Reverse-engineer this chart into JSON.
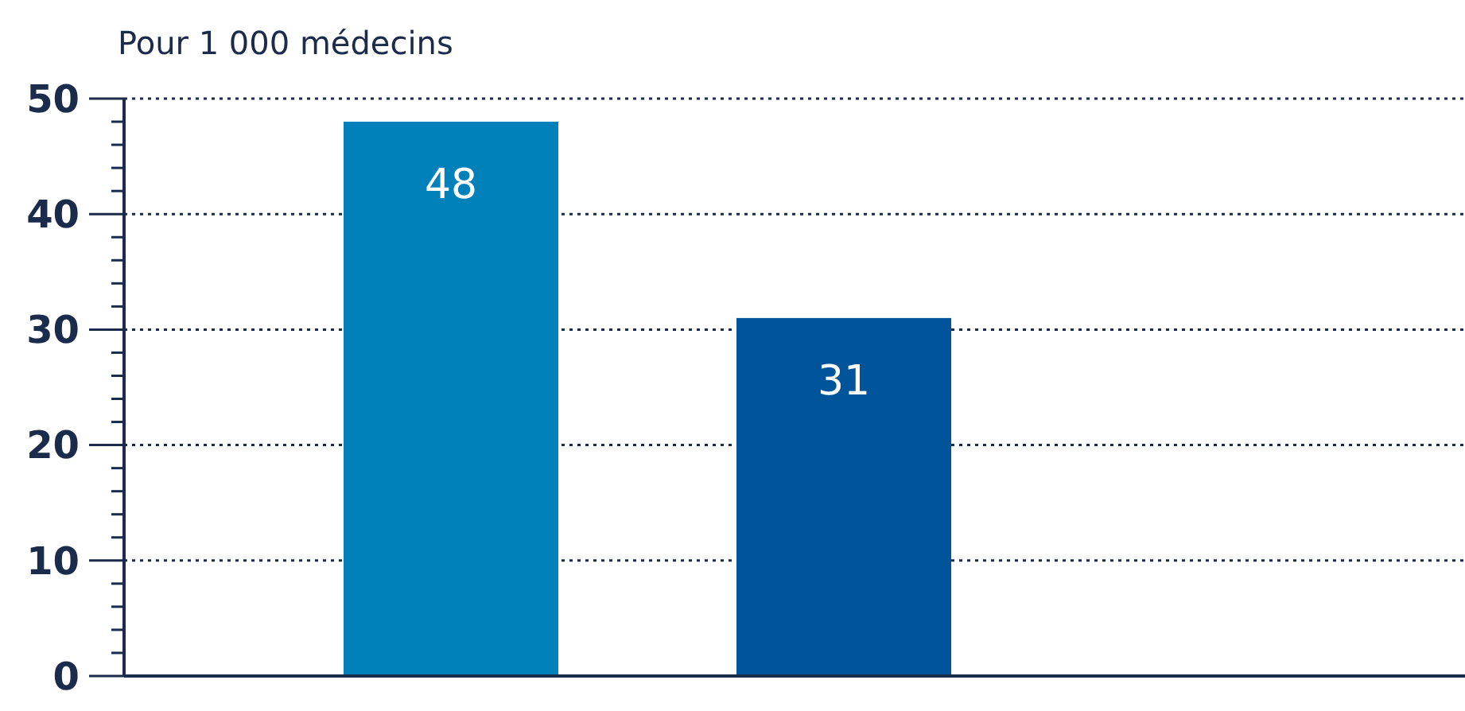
{
  "chart_data": {
    "type": "bar",
    "ylabel": "Pour 1 000 médecins",
    "categories": [
      null,
      null
    ],
    "values": [
      48,
      31
    ],
    "colors": [
      "#0081b9",
      "#00559a"
    ],
    "data_labels": true,
    "ylim": [
      0,
      50
    ],
    "yticks": [
      0,
      {
        "value": 2,
        "label": null
      },
      {
        "value": 4,
        "label": null
      },
      {
        "value": 6,
        "label": null
      },
      {
        "value": 8,
        "label": null
      },
      10,
      {
        "value": 12,
        "label": null
      },
      {
        "value": 14,
        "label": null
      },
      {
        "value": 16,
        "label": null
      },
      {
        "value": 18,
        "label": null
      },
      20,
      {
        "value": 22,
        "label": null
      },
      {
        "value": 24,
        "label": null
      },
      {
        "value": 26,
        "label": null
      },
      {
        "value": 28,
        "label": null
      },
      30,
      {
        "value": 32,
        "label": null
      },
      {
        "value": 34,
        "label": null
      },
      {
        "value": 36,
        "label": null
      },
      {
        "value": 38,
        "label": null
      },
      40,
      {
        "value": 42,
        "label": null
      },
      {
        "value": 44,
        "label": null
      },
      {
        "value": 46,
        "label": null
      },
      {
        "value": 48,
        "label": null
      },
      50
    ],
    "grid": "y"
  }
}
